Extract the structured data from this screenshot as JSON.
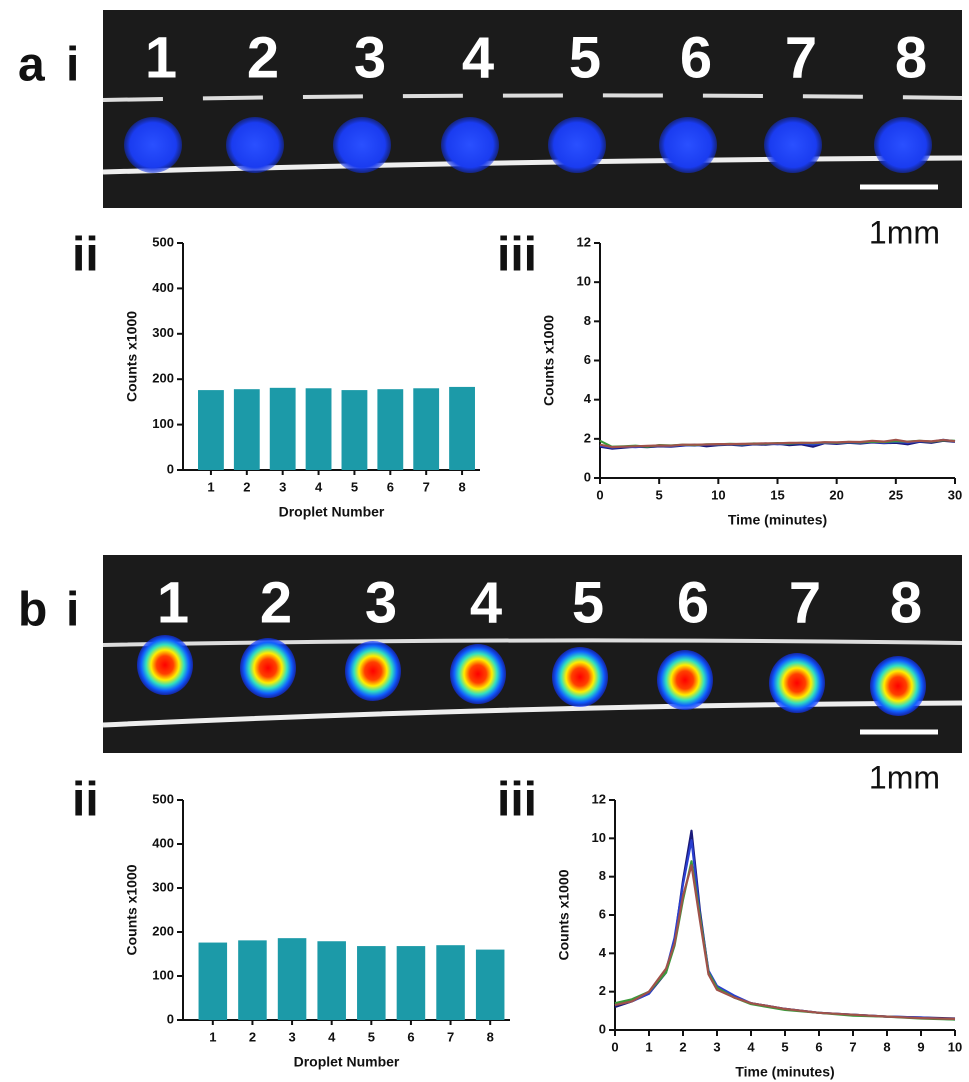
{
  "panels": [
    {
      "label": "a",
      "image_label": "i",
      "droplet_labels": [
        "1",
        "2",
        "3",
        "4",
        "5",
        "6",
        "7",
        "8"
      ],
      "scale_label": "1mm",
      "bar_label": "ii",
      "line_label": "iii"
    },
    {
      "label": "b",
      "image_label": "i",
      "droplet_labels": [
        "1",
        "2",
        "3",
        "4",
        "5",
        "6",
        "7",
        "8"
      ],
      "scale_label": "1mm",
      "bar_label": "ii",
      "line_label": "iii"
    }
  ],
  "chart_data": [
    {
      "type": "bar",
      "xlabel": "Droplet Number",
      "ylabel": "Counts x1000",
      "categories": [
        "1",
        "2",
        "3",
        "4",
        "5",
        "6",
        "7",
        "8"
      ],
      "values": [
        176,
        178,
        181,
        180,
        176,
        178,
        180,
        183
      ],
      "color": "#1c9aa8",
      "ylim": [
        0,
        500
      ],
      "yticks": [
        0,
        100,
        200,
        300,
        400,
        500
      ]
    },
    {
      "type": "line",
      "xlabel": "Time (minutes)",
      "ylabel": "Counts x1000",
      "x": [
        0,
        1,
        2,
        3,
        4,
        5,
        6,
        7,
        8,
        9,
        10,
        11,
        12,
        13,
        14,
        15,
        16,
        17,
        18,
        19,
        20,
        21,
        22,
        23,
        24,
        25,
        26,
        27,
        28,
        29,
        30
      ],
      "series": [
        {
          "color": "#1a1a7a",
          "values": [
            1.6,
            1.5,
            1.55,
            1.6,
            1.58,
            1.62,
            1.6,
            1.65,
            1.7,
            1.62,
            1.68,
            1.7,
            1.66,
            1.72,
            1.7,
            1.75,
            1.68,
            1.72,
            1.6,
            1.78,
            1.74,
            1.8,
            1.76,
            1.82,
            1.78,
            1.8,
            1.72,
            1.85,
            1.8,
            1.9,
            1.85
          ]
        },
        {
          "color": "#2a3fd0",
          "values": [
            1.65,
            1.55,
            1.6,
            1.58,
            1.62,
            1.65,
            1.63,
            1.68,
            1.66,
            1.7,
            1.7,
            1.72,
            1.7,
            1.74,
            1.76,
            1.72,
            1.75,
            1.78,
            1.7,
            1.8,
            1.78,
            1.82,
            1.8,
            1.84,
            1.8,
            1.85,
            1.8,
            1.88,
            1.85,
            1.95,
            1.88
          ]
        },
        {
          "color": "#3a9a3a",
          "values": [
            1.9,
            1.6,
            1.62,
            1.65,
            1.6,
            1.68,
            1.66,
            1.7,
            1.68,
            1.72,
            1.72,
            1.74,
            1.72,
            1.76,
            1.75,
            1.78,
            1.76,
            1.8,
            1.78,
            1.82,
            1.8,
            1.84,
            1.82,
            1.86,
            1.84,
            1.88,
            1.86,
            1.9,
            1.86,
            1.92,
            1.9
          ]
        },
        {
          "color": "#a0524a",
          "values": [
            1.7,
            1.58,
            1.6,
            1.62,
            1.64,
            1.66,
            1.65,
            1.7,
            1.7,
            1.71,
            1.73,
            1.73,
            1.74,
            1.75,
            1.77,
            1.77,
            1.79,
            1.8,
            1.8,
            1.83,
            1.82,
            1.85,
            1.84,
            1.9,
            1.86,
            1.95,
            1.85,
            1.9,
            1.87,
            1.94,
            1.88
          ]
        }
      ],
      "xlim": [
        0,
        30
      ],
      "xticks": [
        0,
        5,
        10,
        15,
        20,
        25,
        30
      ],
      "ylim": [
        0,
        12
      ],
      "yticks": [
        0,
        2,
        4,
        6,
        8,
        10,
        12
      ]
    },
    {
      "type": "bar",
      "xlabel": "Droplet Number",
      "ylabel": "Counts x1000",
      "categories": [
        "1",
        "2",
        "3",
        "4",
        "5",
        "6",
        "7",
        "8"
      ],
      "values": [
        176,
        181,
        186,
        179,
        168,
        168,
        170,
        160
      ],
      "color": "#1c9aa8",
      "ylim": [
        0,
        500
      ],
      "yticks": [
        0,
        100,
        200,
        300,
        400,
        500
      ]
    },
    {
      "type": "line",
      "xlabel": "Time (minutes)",
      "ylabel": "Counts x1000",
      "x": [
        0,
        0.5,
        1,
        1.5,
        1.75,
        2,
        2.25,
        2.5,
        2.75,
        3,
        3.5,
        4,
        5,
        6,
        7,
        8,
        9,
        10
      ],
      "series": [
        {
          "color": "#1a1a7a",
          "values": [
            1.2,
            1.5,
            1.9,
            3.0,
            4.6,
            7.8,
            10.4,
            6.2,
            3.0,
            2.2,
            1.7,
            1.4,
            1.1,
            0.9,
            0.8,
            0.7,
            0.65,
            0.6
          ]
        },
        {
          "color": "#2a3fd0",
          "values": [
            1.3,
            1.5,
            1.9,
            3.1,
            4.8,
            7.6,
            9.9,
            6.0,
            3.1,
            2.3,
            1.8,
            1.4,
            1.1,
            0.9,
            0.8,
            0.7,
            0.65,
            0.55
          ]
        },
        {
          "color": "#3a9a3a",
          "values": [
            1.4,
            1.6,
            2.0,
            3.0,
            4.4,
            6.8,
            8.8,
            5.9,
            3.0,
            2.2,
            1.7,
            1.35,
            1.05,
            0.9,
            0.75,
            0.7,
            0.6,
            0.55
          ]
        },
        {
          "color": "#a0524a",
          "values": [
            1.3,
            1.5,
            2.0,
            3.2,
            4.5,
            7.0,
            8.6,
            5.7,
            2.9,
            2.1,
            1.7,
            1.4,
            1.1,
            0.9,
            0.8,
            0.7,
            0.62,
            0.58
          ]
        }
      ],
      "xlim": [
        0,
        10
      ],
      "xticks": [
        0,
        1,
        2,
        3,
        4,
        5,
        6,
        7,
        8,
        9,
        10
      ],
      "ylim": [
        0,
        12
      ],
      "yticks": [
        0,
        2,
        4,
        6,
        8,
        10,
        12
      ]
    }
  ]
}
